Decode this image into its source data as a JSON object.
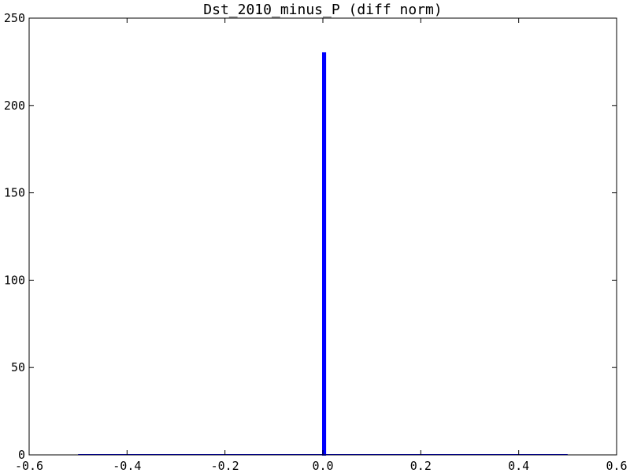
{
  "chart_data": {
    "type": "bar",
    "title": "Dst_2010_minus_P (diff norm)",
    "xlabel": "",
    "ylabel": "",
    "xlim": [
      -0.6,
      0.6
    ],
    "ylim": [
      0,
      250
    ],
    "xticks": [
      "-0.6",
      "-0.4",
      "-0.2",
      "0.0",
      "0.2",
      "0.4",
      "0.6"
    ],
    "xtick_values": [
      -0.6,
      -0.4,
      -0.2,
      0.0,
      0.2,
      0.4,
      0.6
    ],
    "yticks": [
      "0",
      "50",
      "100",
      "150",
      "200",
      "250"
    ],
    "ytick_values": [
      0,
      50,
      100,
      150,
      200,
      250
    ],
    "grid": false,
    "series": [
      {
        "bins": [
          {
            "x_start": -0.5,
            "x_end": 0.0,
            "value": 0
          },
          {
            "x_start": 0.0,
            "x_end": 0.005,
            "value": 230
          },
          {
            "x_start": 0.005,
            "x_end": 0.5,
            "value": 0
          }
        ],
        "color": "#0000ff"
      }
    ]
  }
}
